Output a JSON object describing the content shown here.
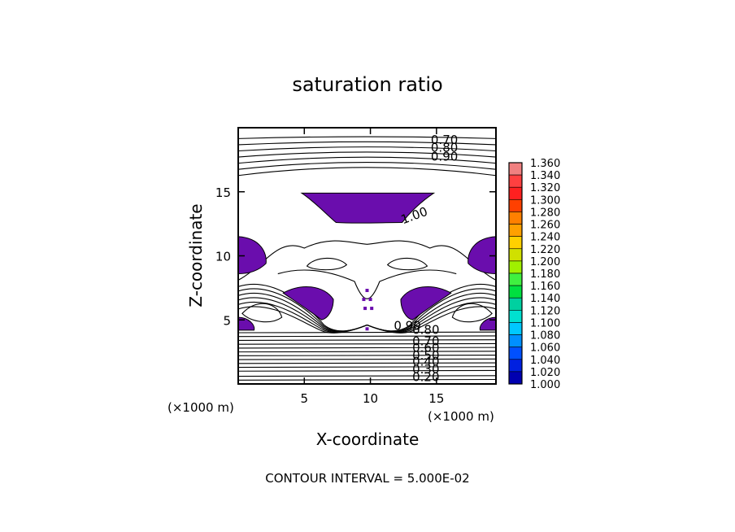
{
  "chart_data": {
    "type": "contour",
    "title": "saturation ratio",
    "xlabel": "X-coordinate",
    "ylabel": "Z-coordinate",
    "x_unit_label": "(×1000 m)",
    "y_unit_label": "(×1000 m)",
    "xlim": [
      0,
      19.5
    ],
    "ylim": [
      0,
      20
    ],
    "x_ticks": [
      5,
      10,
      15
    ],
    "y_ticks": [
      5,
      10,
      15
    ],
    "footer": "CONTOUR INTERVAL = 5.000E-02",
    "contour_labels": [
      "0.70",
      "0.80",
      "0.90",
      "1.00",
      "0.90",
      "0.80",
      "0.70",
      "0.60",
      "0.50",
      "0.40",
      "0.30",
      "0.20"
    ],
    "colorbar": {
      "levels": [
        "1.360",
        "1.340",
        "1.320",
        "1.300",
        "1.280",
        "1.260",
        "1.240",
        "1.220",
        "1.200",
        "1.180",
        "1.160",
        "1.140",
        "1.120",
        "1.100",
        "1.080",
        "1.060",
        "1.040",
        "1.020",
        "1.000"
      ],
      "colors": [
        "#f08080",
        "#ff4040",
        "#ff2020",
        "#ff4000",
        "#ff8000",
        "#ffa000",
        "#ffd000",
        "#d0e000",
        "#a0f000",
        "#40f040",
        "#00e040",
        "#00d0a0",
        "#00e0d0",
        "#00c8ff",
        "#0090ff",
        "#0050ff",
        "#0020e0",
        "#0000b0",
        "#5a1a9a"
      ]
    },
    "filled_region_color": "#6a0dad"
  }
}
